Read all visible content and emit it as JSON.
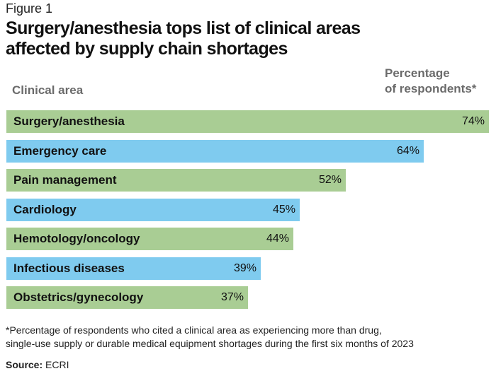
{
  "figure_label": "Figure 1",
  "chart_data": {
    "type": "bar",
    "orientation": "horizontal",
    "title": "Surgery/anesthesia tops list of clinical areas affected by supply chain shortages",
    "xlabel": "Percentage of respondents*",
    "ylabel": "Clinical area",
    "xlim": [
      0,
      74
    ],
    "categories": [
      "Surgery/anesthesia",
      "Emergency care",
      "Pain management",
      "Cardiology",
      "Hemotology/oncology",
      "Infectious diseases",
      "Obstetrics/gynecology"
    ],
    "values": [
      74,
      64,
      52,
      45,
      44,
      39,
      37
    ],
    "value_labels": [
      "74%",
      "64%",
      "52%",
      "45%",
      "44%",
      "39%",
      "37%"
    ],
    "bar_colors": [
      "#a9cd94",
      "#7fcbef",
      "#a9cd94",
      "#7fcbef",
      "#a9cd94",
      "#7fcbef",
      "#a9cd94"
    ],
    "grid": false
  },
  "header": {
    "title_line1": "Surgery/anesthesia tops list of clinical areas",
    "title_line2": "affected by supply chain shortages",
    "col_left": "Clinical area",
    "col_right_line1": "Percentage",
    "col_right_line2": "of respondents*"
  },
  "footnote": {
    "line1": "*Percentage of respondents who cited a clinical area as experiencing more than drug,",
    "line2": "single-use supply or durable medical equipment shortages during the first six months of 2023"
  },
  "source": {
    "label": "Source:",
    "value": "ECRI"
  }
}
